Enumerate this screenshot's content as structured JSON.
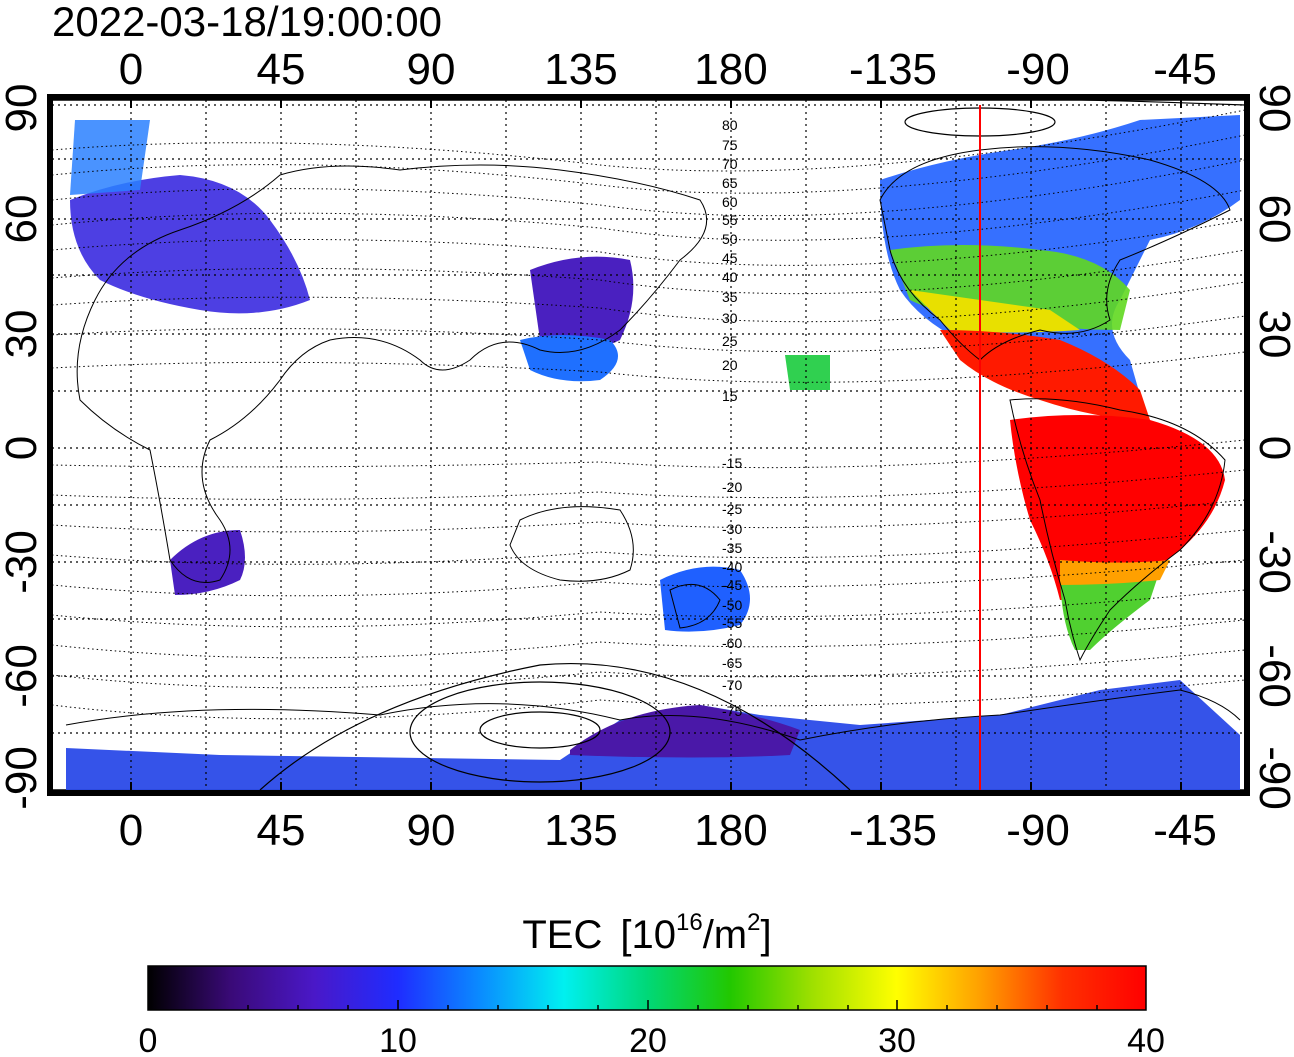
{
  "timestamp": "2022-03-18/19:00:00",
  "map": {
    "top_axis_labels": [
      "0",
      "45",
      "90",
      "135",
      "180",
      "-135",
      "-90",
      "-45"
    ],
    "bottom_axis_labels": [
      "0",
      "45",
      "90",
      "135",
      "180",
      "-135",
      "-90",
      "-45"
    ],
    "left_axis_labels": [
      "90",
      "60",
      "30",
      "0",
      "-30",
      "-60",
      "-90"
    ],
    "right_axis_labels": [
      "90",
      "60",
      "30",
      "0",
      "-30",
      "-60",
      "-90"
    ],
    "contour_labels_north": [
      "80",
      "75",
      "70",
      "65",
      "60",
      "55",
      "50",
      "45",
      "40",
      "35",
      "30",
      "25",
      "20",
      "15"
    ],
    "contour_labels_south": [
      "-15",
      "-20",
      "-25",
      "-30",
      "-35",
      "-40",
      "-45",
      "-50",
      "-55",
      "-60",
      "-65",
      "-70",
      "-75"
    ],
    "marker_line_color": "#ff0000"
  },
  "colorbar": {
    "title": "TEC",
    "unit_base": "[10",
    "unit_exp": "16",
    "unit_mid": "/m",
    "unit_exp2": "2",
    "unit_close": "]",
    "tick_labels": [
      "0",
      "10",
      "20",
      "30",
      "40"
    ],
    "colors": [
      "#000000",
      "#3a0a78",
      "#4a18c8",
      "#1f2cff",
      "#0a8cff",
      "#00f0f0",
      "#00d878",
      "#22c800",
      "#a0e000",
      "#ffff00",
      "#ffa000",
      "#ff3000",
      "#ff0000"
    ]
  }
}
